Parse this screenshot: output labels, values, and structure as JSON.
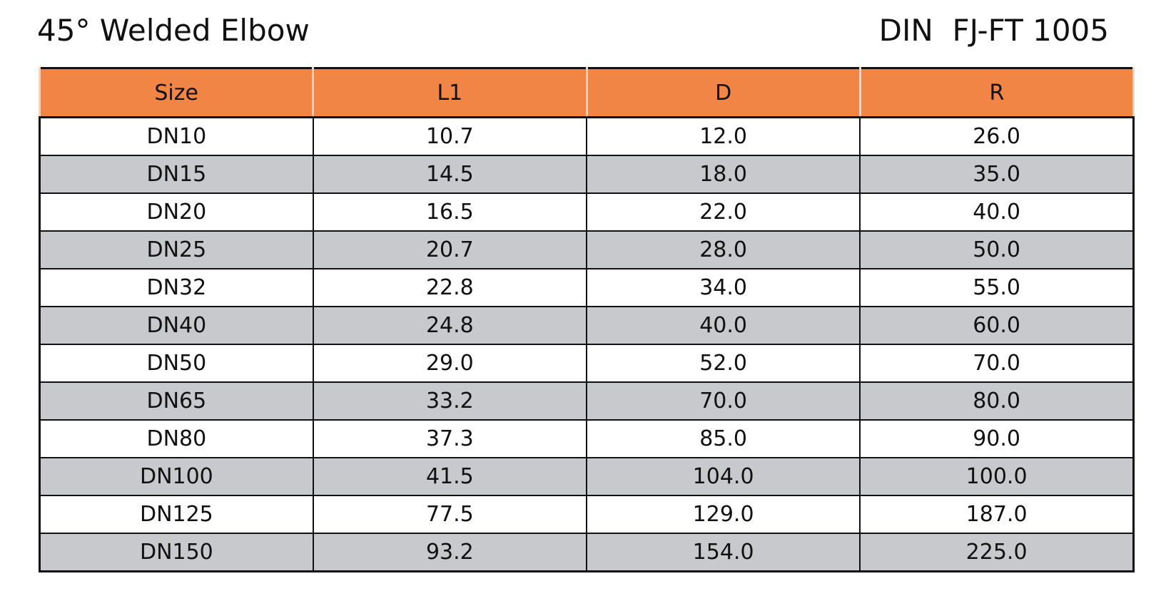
{
  "header": {
    "title": "45° Welded Elbow",
    "standard": "DIN  FJ-FT 1005"
  },
  "table": {
    "columns": [
      "Size",
      "L1",
      "D",
      "R"
    ],
    "rows": [
      [
        "DN10",
        "10.7",
        "12.0",
        "26.0"
      ],
      [
        "DN15",
        "14.5",
        "18.0",
        "35.0"
      ],
      [
        "DN20",
        "16.5",
        "22.0",
        "40.0"
      ],
      [
        "DN25",
        "20.7",
        "28.0",
        "50.0"
      ],
      [
        "DN32",
        "22.8",
        "34.0",
        "55.0"
      ],
      [
        "DN40",
        "24.8",
        "40.0",
        "60.0"
      ],
      [
        "DN50",
        "29.0",
        "52.0",
        "70.0"
      ],
      [
        "DN65",
        "33.2",
        "70.0",
        "80.0"
      ],
      [
        "DN80",
        "37.3",
        "85.0",
        "90.0"
      ],
      [
        "DN100",
        "41.5",
        "104.0",
        "100.0"
      ],
      [
        "DN125",
        "77.5",
        "129.0",
        "187.0"
      ],
      [
        "DN150",
        "93.2",
        "154.0",
        "225.0"
      ]
    ]
  }
}
